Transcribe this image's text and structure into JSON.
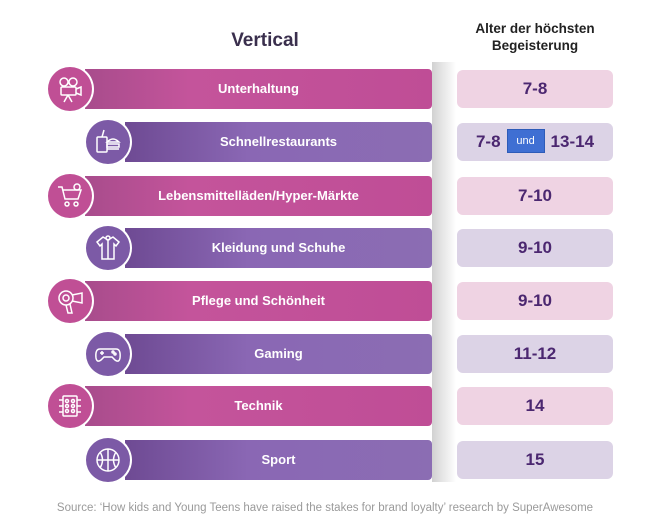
{
  "header": {
    "vertical_title": "Vertical",
    "age_title_line1": "Alter der höchsten",
    "age_title_line2": "Begeisterung"
  },
  "rows": [
    {
      "label": "Unterhaltung",
      "age": "7-8",
      "icon": "film-camera-icon",
      "color": "pink"
    },
    {
      "label": "Schnellrestaurants",
      "age_a": "7-8",
      "joiner": "und",
      "age_b": "13-14",
      "icon": "fast-food-icon",
      "color": "purple"
    },
    {
      "label": "Lebensmittelläden/Hyper-Märkte",
      "age": "7-10",
      "icon": "shopping-cart-icon",
      "color": "pink"
    },
    {
      "label": "Kleidung und Schuhe",
      "age": "9-10",
      "icon": "jacket-icon",
      "color": "purple"
    },
    {
      "label": "Pflege und Schönheit",
      "age": "9-10",
      "icon": "hair-dryer-icon",
      "color": "pink"
    },
    {
      "label": "Gaming",
      "age": "11-12",
      "icon": "gamepad-icon",
      "color": "purple"
    },
    {
      "label": "Technik",
      "age": "14",
      "icon": "microchip-icon",
      "color": "pink"
    },
    {
      "label": "Sport",
      "age": "15",
      "icon": "basketball-icon",
      "color": "purple"
    }
  ],
  "colors": {
    "pink": "#c04f95",
    "purple": "#8a67b4",
    "age_text": "#4b2770"
  },
  "source": "Source: ‘How kids and Young Teens have raised the stakes for brand loyalty’ research by SuperAwesome"
}
